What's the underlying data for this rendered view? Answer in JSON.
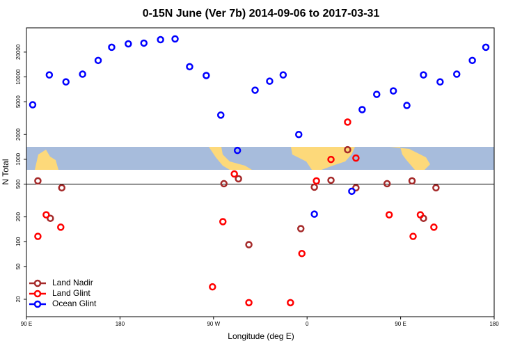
{
  "chart_data": {
    "type": "scatter",
    "title": "0-15N June (Ver 7b)   2014-09-06 to 2017-03-31",
    "x_label": "Longitude (deg E)",
    "y_label": "N Total",
    "ylog": true,
    "hline": 500,
    "legend": "lower-left",
    "xlim": [
      90,
      540
    ],
    "xticks": [
      {
        "value": 90,
        "label": "90 E"
      },
      {
        "value": 180,
        "label": "180"
      },
      {
        "value": 270,
        "label": "90 W"
      },
      {
        "value": 360,
        "label": "0"
      },
      {
        "value": 450,
        "label": "90 E"
      },
      {
        "value": 540,
        "label": "180"
      }
    ],
    "ylim": [
      12.3,
      39400
    ],
    "yticks": [
      20,
      50,
      100,
      200,
      500,
      1000,
      2000,
      5000,
      10000,
      20000
    ],
    "series": [
      {
        "name": "Land Nadir",
        "color": "#a52a2a",
        "x": [
          101,
          124,
          113,
          280,
          294,
          304,
          354,
          367,
          383,
          399,
          407,
          437,
          461,
          472,
          484
        ],
        "values": [
          547,
          451,
          192,
          506,
          580,
          92,
          144,
          459,
          557,
          1307,
          451,
          506,
          547,
          192,
          451
        ]
      },
      {
        "name": "Land Glint",
        "color": "#ff0000",
        "x": [
          101,
          109,
          123,
          269,
          279,
          290,
          304,
          344,
          355,
          369,
          383,
          399,
          407,
          439,
          462,
          469,
          482
        ],
        "values": [
          116,
          212,
          150,
          28.3,
          175,
          664,
          18.2,
          18.2,
          71.8,
          547,
          996,
          2830,
          1035,
          212,
          116,
          212,
          150
        ]
      },
      {
        "name": "Ocean Glint",
        "color": "#0000ff",
        "x": [
          96,
          112,
          128,
          144,
          159,
          172,
          188,
          203,
          219,
          233,
          247,
          263,
          277,
          293,
          310,
          324,
          337,
          352,
          367,
          403,
          413,
          427,
          443,
          456,
          472,
          488,
          504,
          519,
          532
        ],
        "values": [
          4590,
          10570,
          8700,
          10800,
          15850,
          22900,
          25200,
          25700,
          28300,
          28900,
          13300,
          10400,
          3440,
          1280,
          6900,
          8870,
          10570,
          2000,
          216,
          409,
          4010,
          6140,
          6760,
          4500,
          10570,
          8700,
          10800,
          15850,
          22900
        ]
      }
    ]
  }
}
